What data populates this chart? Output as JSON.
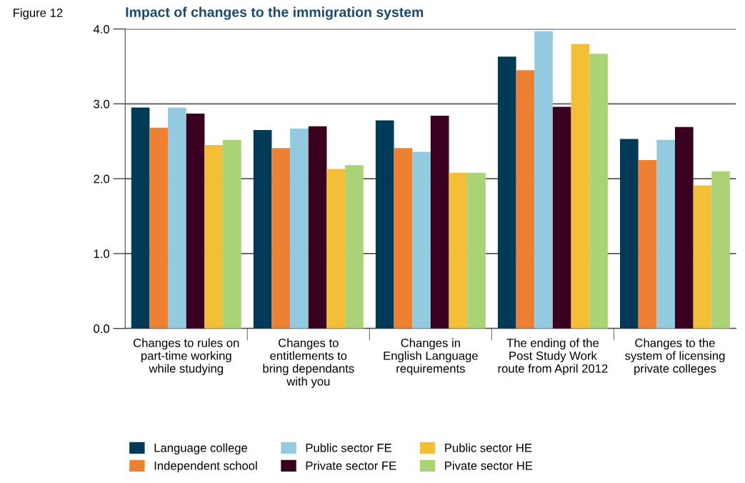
{
  "chart_data": {
    "type": "bar",
    "title": "Impact of changes to the immigration system",
    "annotations": [
      "Figure 12"
    ],
    "categories": [
      "Changes to rules on\npart-time working\nwhile studying",
      "Changes to\nentitlements to\nbring dependants\nwith you",
      "Changes in\nEnglish Language\nrequirements",
      "The ending of the\nPost Study Work\nroute from April 2012",
      "Changes to the\nsystem of licensing\nprivate colleges"
    ],
    "series": [
      {
        "name": "Language college",
        "color": "#003a57",
        "values": [
          2.95,
          2.65,
          2.78,
          3.63,
          2.53
        ]
      },
      {
        "name": "Independent school",
        "color": "#ec8033",
        "values": [
          2.68,
          2.41,
          2.41,
          3.45,
          2.25
        ]
      },
      {
        "name": "Public sector FE",
        "color": "#93cadf",
        "values": [
          2.95,
          2.67,
          2.36,
          3.97,
          2.52
        ]
      },
      {
        "name": "Private sector FE",
        "color": "#3a0020",
        "values": [
          2.87,
          2.7,
          2.84,
          2.96,
          2.69
        ]
      },
      {
        "name": "Public sector HE",
        "color": "#f4bf38",
        "values": [
          2.45,
          2.13,
          2.08,
          3.8,
          1.91
        ]
      },
      {
        "name": "Pivate sector HE",
        "color": "#a9d374",
        "values": [
          2.52,
          2.18,
          2.08,
          3.67,
          2.1
        ]
      }
    ],
    "ylim": [
      0,
      4
    ],
    "yticks": [
      {
        "value": 0,
        "label": "0.0"
      },
      {
        "value": 1,
        "label": "1.0"
      },
      {
        "value": 2,
        "label": "2.0"
      },
      {
        "value": 3,
        "label": "3.0"
      },
      {
        "value": 4,
        "label": "4.0"
      }
    ],
    "grid": "y",
    "legend": "bottom"
  }
}
